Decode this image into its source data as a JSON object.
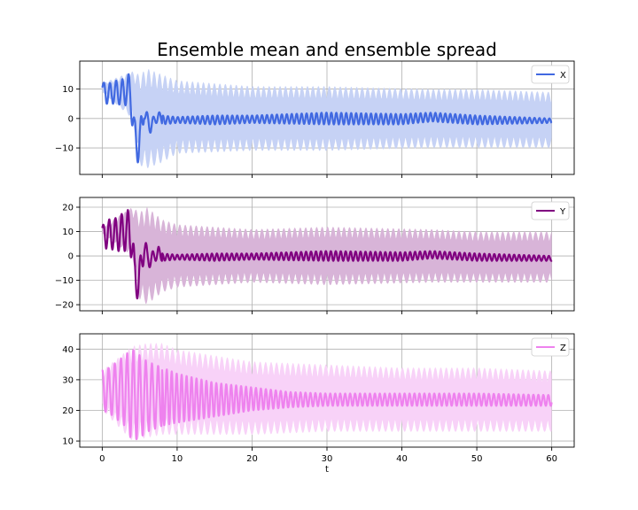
{
  "chart_data": {
    "type": "line",
    "title": "Ensemble mean and ensemble spread",
    "xlabel": "t",
    "xlim": [
      -3,
      63
    ],
    "xticks": [
      0,
      10,
      20,
      30,
      40,
      50,
      60
    ],
    "grid": true,
    "legend_position": "upper right",
    "panels": [
      {
        "name": "X",
        "color": "#4169e1",
        "band_color": "#c6d2f5",
        "ylim": [
          -19,
          19.5
        ],
        "yticks": [
          -10,
          0,
          10
        ],
        "mean_envelope": {
          "t": [
            0,
            0.5,
            1,
            1.5,
            2,
            2.5,
            3,
            3.5,
            3.9,
            4.3,
            4.8,
            5.2,
            5.6,
            6,
            6.5,
            7,
            7.5,
            8,
            10,
            15,
            20,
            30,
            40,
            44,
            50,
            60
          ],
          "upper": [
            12,
            12.5,
            12,
            12.5,
            13,
            13,
            14,
            15,
            16,
            0,
            -5,
            1,
            5,
            2,
            0,
            1,
            2.5,
            1,
            0.5,
            1,
            1,
            2,
            1.5,
            2,
            1,
            0
          ],
          "lower": [
            9,
            5,
            5,
            5,
            5,
            4.5,
            4.5,
            4.5,
            0,
            -14,
            -15,
            -10,
            0,
            -4,
            -5,
            -2,
            -1,
            -2,
            -1.5,
            -2,
            -1.5,
            -2,
            -2,
            -1,
            -2,
            -1.5
          ]
        },
        "spread_envelope": {
          "t": [
            0,
            4,
            5,
            6,
            8,
            10,
            20,
            30,
            44,
            50,
            60
          ],
          "upper": [
            12,
            16,
            15,
            17,
            15,
            13,
            11,
            11,
            10,
            10,
            9
          ],
          "lower": [
            9,
            0,
            -16,
            -17,
            -15,
            -12,
            -11,
            -11,
            -10,
            -10,
            -10
          ]
        }
      },
      {
        "name": "Y",
        "color": "#800080",
        "band_color": "#d8b4d8",
        "ylim": [
          -22.5,
          24
        ],
        "yticks": [
          -20,
          -10,
          0,
          10,
          20
        ],
        "mean_envelope": {
          "t": [
            0,
            0.5,
            1,
            1.5,
            2,
            2.5,
            3,
            3.5,
            3.9,
            4.3,
            4.8,
            5.2,
            5.6,
            6,
            6.5,
            7,
            7.5,
            8,
            10,
            15,
            20,
            30,
            40,
            44,
            50,
            60
          ],
          "upper": [
            12,
            15,
            15,
            15,
            16,
            17,
            18,
            19,
            20,
            0,
            -5,
            2,
            10,
            3,
            1,
            3,
            4,
            1,
            0.5,
            1,
            1,
            2,
            1.5,
            2,
            1,
            0
          ],
          "lower": [
            9,
            3,
            3,
            2.5,
            2,
            2,
            2,
            2,
            -1,
            -16,
            -18,
            -10,
            -1,
            -4,
            -5,
            -2,
            -2,
            -2,
            -1.5,
            -2,
            -1.5,
            -2,
            -2,
            -1,
            -2,
            -2
          ]
        },
        "spread_envelope": {
          "t": [
            0,
            4,
            5,
            6,
            8,
            10,
            20,
            30,
            44,
            50,
            60
          ],
          "upper": [
            12,
            20,
            18,
            20,
            15,
            13,
            11,
            12,
            11,
            10,
            10
          ],
          "lower": [
            9,
            0,
            -18,
            -20,
            -15,
            -13,
            -11,
            -12,
            -11,
            -11,
            -11
          ]
        }
      },
      {
        "name": "Z",
        "color": "#ee82ee",
        "band_color": "#f8d2f8",
        "ylim": [
          8,
          45
        ],
        "yticks": [
          10,
          20,
          30,
          40
        ],
        "mean_envelope": {
          "t": [
            0,
            1,
            2,
            3,
            4,
            5,
            6,
            8,
            10,
            15,
            20,
            25,
            30,
            40,
            50,
            60
          ],
          "upper": [
            33,
            34,
            36,
            38,
            40,
            38,
            36,
            34,
            32,
            29,
            27.5,
            26,
            25.5,
            25.5,
            25.5,
            25
          ],
          "lower": [
            20,
            19,
            17,
            15,
            10,
            11,
            13,
            15,
            16,
            18,
            20,
            21,
            21.5,
            21.5,
            21.5,
            21.5
          ]
        },
        "spread_envelope": {
          "t": [
            0,
            4,
            6,
            8,
            10,
            15,
            20,
            30,
            40,
            50,
            60
          ],
          "upper": [
            33,
            41,
            42,
            42,
            40,
            38,
            36,
            35,
            34,
            34,
            33
          ],
          "lower": [
            20,
            10,
            11,
            12,
            12,
            12,
            12,
            13,
            13,
            13,
            13
          ]
        }
      }
    ]
  }
}
